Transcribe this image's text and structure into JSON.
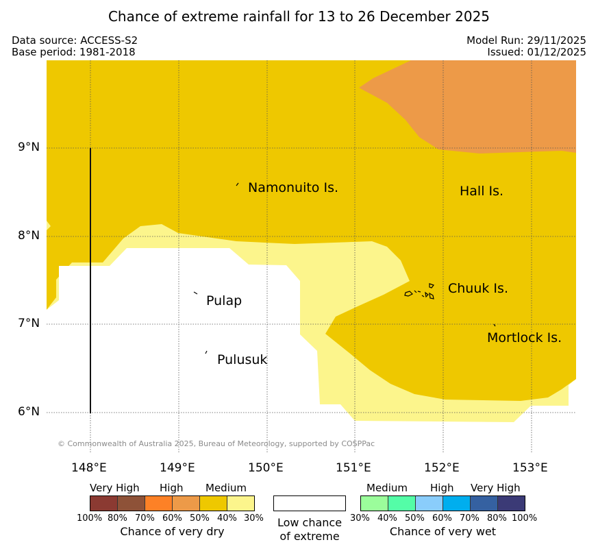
{
  "title": "Chance of extreme rainfall for 13 to 26 December 2025",
  "data_source": "Data source: ACCESS-S2",
  "base_period": "Base period: 1981-2018",
  "model_run": "Model Run: 29/11/2025",
  "issued": "Issued: 01/12/2025",
  "lat_labels": [
    "9°N",
    "8°N",
    "7°N",
    "6°N"
  ],
  "lon_labels": [
    "148°E",
    "149°E",
    "150°E",
    "151°E",
    "152°E",
    "153°E"
  ],
  "islands": {
    "namonuito": "Namonuito Is.",
    "hall": "Hall Is.",
    "pulap": "Pulap",
    "chuuk": "Chuuk Is.",
    "mortlock": "Mortlock Is.",
    "pulusuk": "Pulusuk"
  },
  "copyright": "© Commonwealth of Australia 2025, Bureau of Meteorology, supported by COSPPac",
  "legend": {
    "dry": {
      "headings": [
        "Very High",
        "High",
        "Medium"
      ],
      "ticks": [
        "100%",
        "80%",
        "70%",
        "60%",
        "50%",
        "40%",
        "30%"
      ],
      "colors": [
        "#8b3a32",
        "#8e5238",
        "#fd8126",
        "#ed9a48",
        "#eec800",
        "#fcf58c"
      ],
      "caption": "Chance of very dry"
    },
    "neutral": {
      "caption_line1": "Low chance",
      "caption_line2": "of extreme",
      "color": "#ffffff"
    },
    "wet": {
      "headings": [
        "Medium",
        "High",
        "Very High"
      ],
      "ticks": [
        "30%",
        "40%",
        "50%",
        "60%",
        "70%",
        "80%",
        "100%"
      ],
      "colors": [
        "#9bfd9b",
        "#54fda7",
        "#8acdfb",
        "#00aeee",
        "#3561a1",
        "#3b3a76"
      ],
      "caption": "Chance of very wet"
    }
  },
  "map_colors": {
    "dry_50_40": "#eec800",
    "dry_60_50": "#ed9a48",
    "dry_40_30": "#fcf58c",
    "low": "#ffffff"
  }
}
